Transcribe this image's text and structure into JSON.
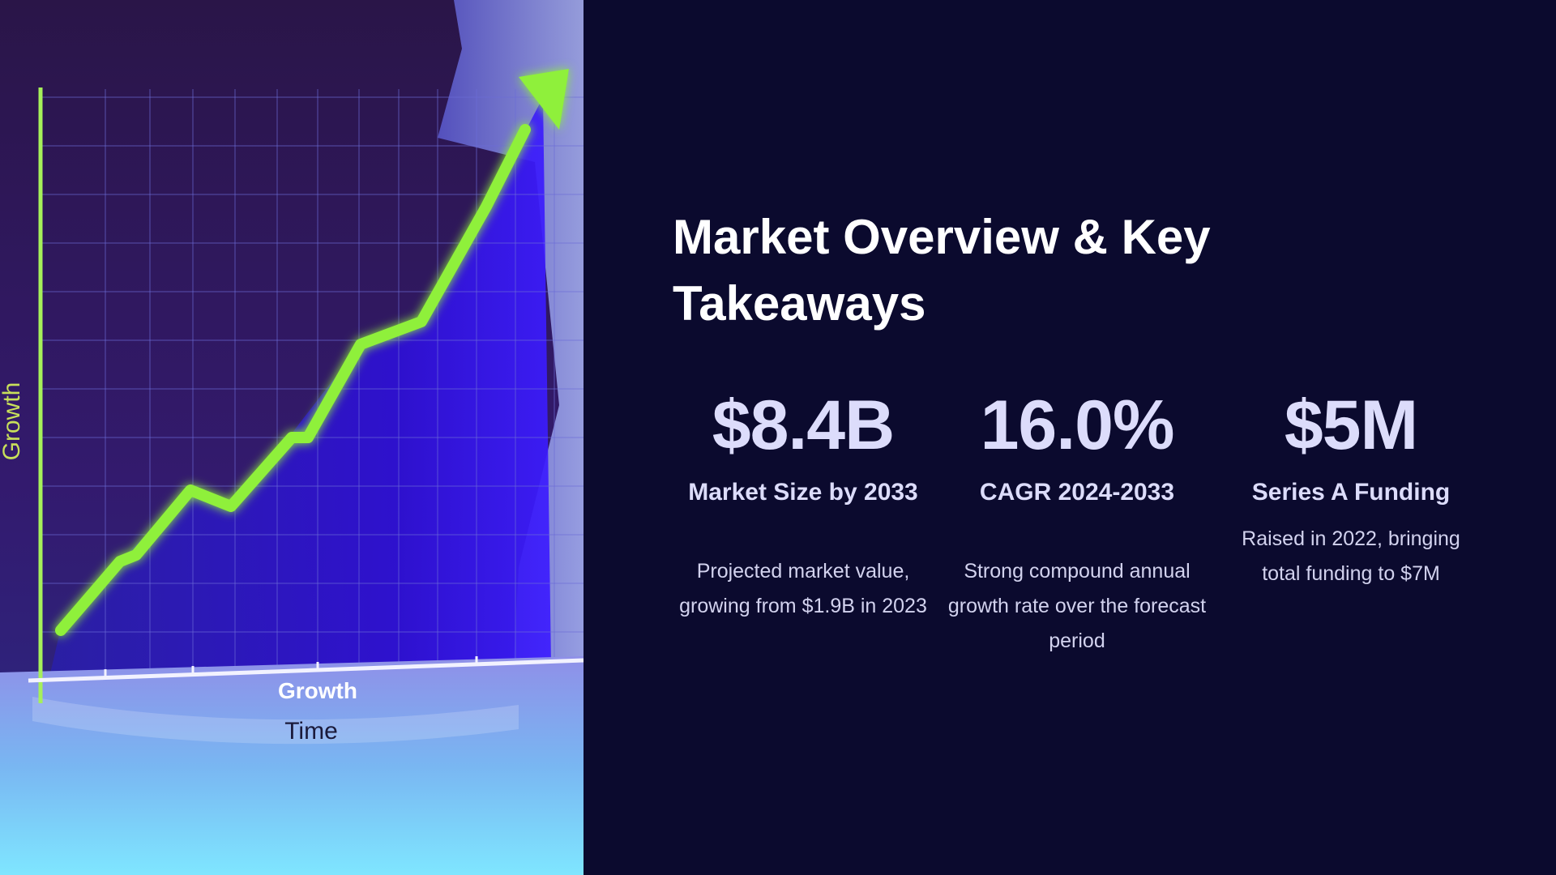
{
  "slide": {
    "title": "Market Overview & Key Takeaways",
    "background_color": "#0b0a2e",
    "accent_color": "#dcdcfb"
  },
  "image": {
    "description_icon": "growth-chart-photo",
    "axis_label_vertical": "Growth",
    "axis_label_horizontal": "Growth",
    "axis_caption": "Time",
    "arrow_color": "#8ff03a"
  },
  "stats": [
    {
      "value": "$8.4B",
      "label": "Market Size by 2033",
      "description": "Projected market value, growing from $1.9B in 2023"
    },
    {
      "value": "16.0%",
      "label": "CAGR 2024-2033",
      "description": "Strong compound annual growth rate over the forecast period"
    },
    {
      "value": "$5M",
      "label": "Series A Funding",
      "description": "Raised in 2022, bringing total funding to $7M"
    }
  ]
}
